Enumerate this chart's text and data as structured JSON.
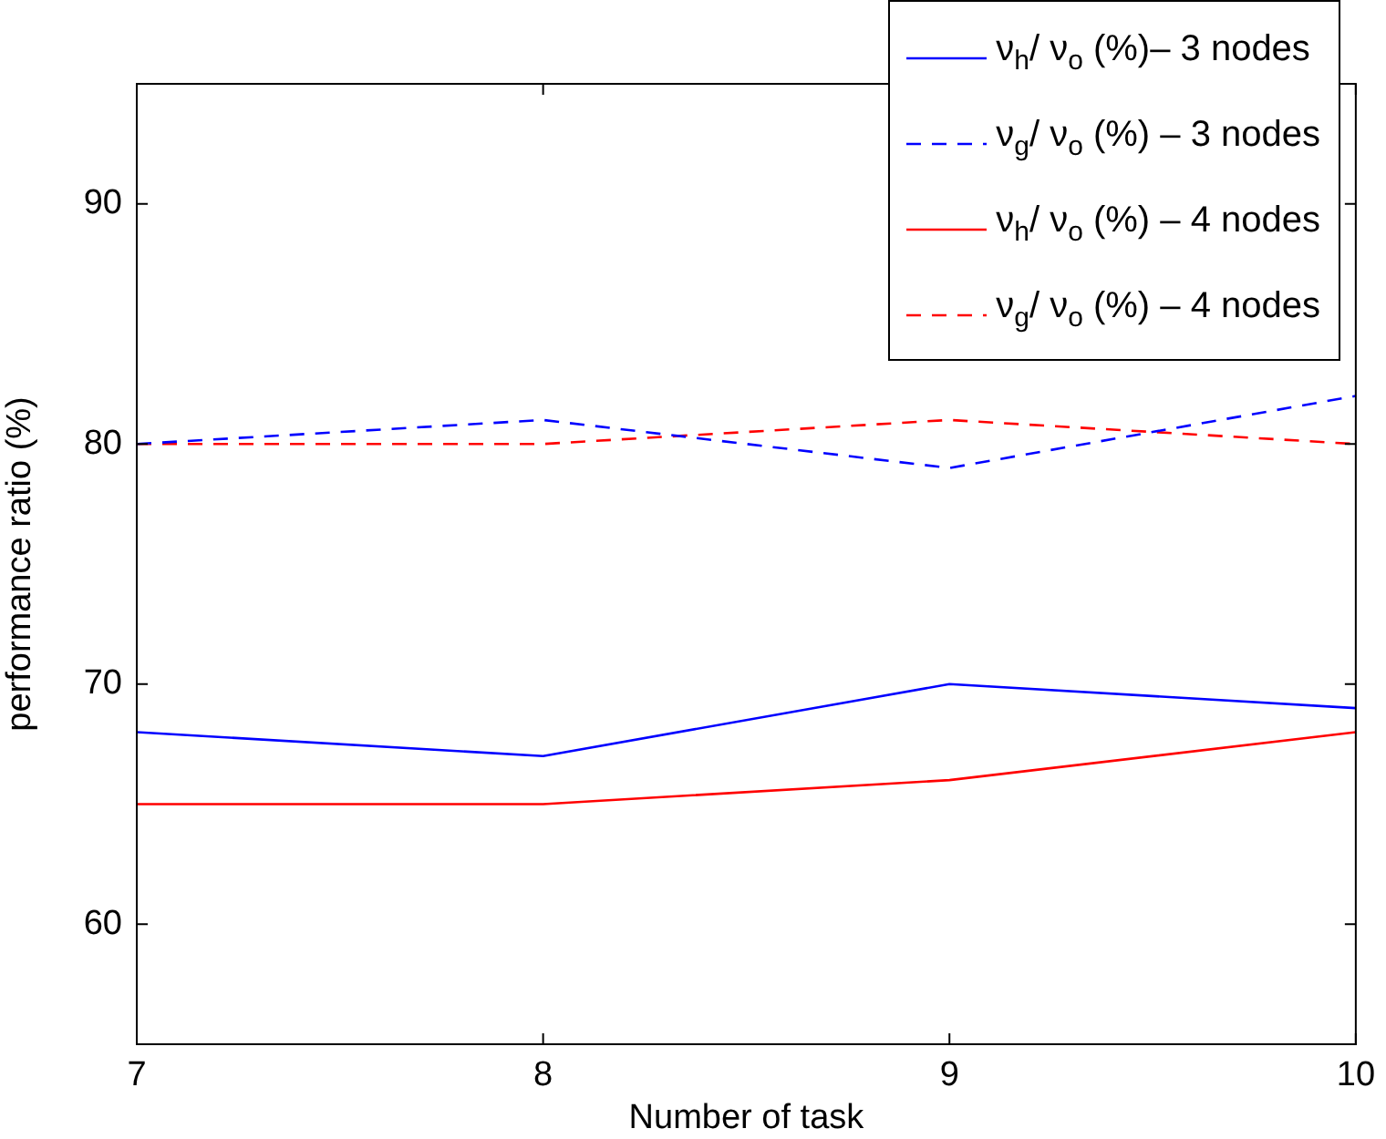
{
  "chart_data": {
    "type": "line",
    "xlabel": "Number of task",
    "ylabel": "performance ratio (%)",
    "x": [
      7,
      8,
      9,
      10
    ],
    "xlim": [
      7,
      10
    ],
    "xticks": [
      7,
      8,
      9,
      10
    ],
    "ylim": [
      55,
      95
    ],
    "yticks": [
      60,
      70,
      80,
      90
    ],
    "grid": false,
    "legend": "top right",
    "marker": "none",
    "series": [
      {
        "name": "ν$_{h}$/ ν$_{o}$ (%)– 3 nodes",
        "color": "#0000ff",
        "line_style": "solid",
        "values": [
          68,
          67,
          70,
          69
        ]
      },
      {
        "name": "ν$_{g}$/ ν$_{o}$ (%) – 3 nodes",
        "color": "#0000ff",
        "line_style": "dashed",
        "values": [
          80,
          81,
          79,
          82
        ]
      },
      {
        "name": "ν$_{h}$/ ν$_{o}$ (%) – 4 nodes",
        "color": "#ff0000",
        "line_style": "solid",
        "values": [
          65,
          65,
          66,
          68
        ]
      },
      {
        "name": "ν$_{g}$/ ν$_{o}$ (%) – 4 nodes",
        "color": "#ff0000",
        "line_style": "dashed",
        "values": [
          80,
          80,
          81,
          80
        ]
      }
    ]
  }
}
